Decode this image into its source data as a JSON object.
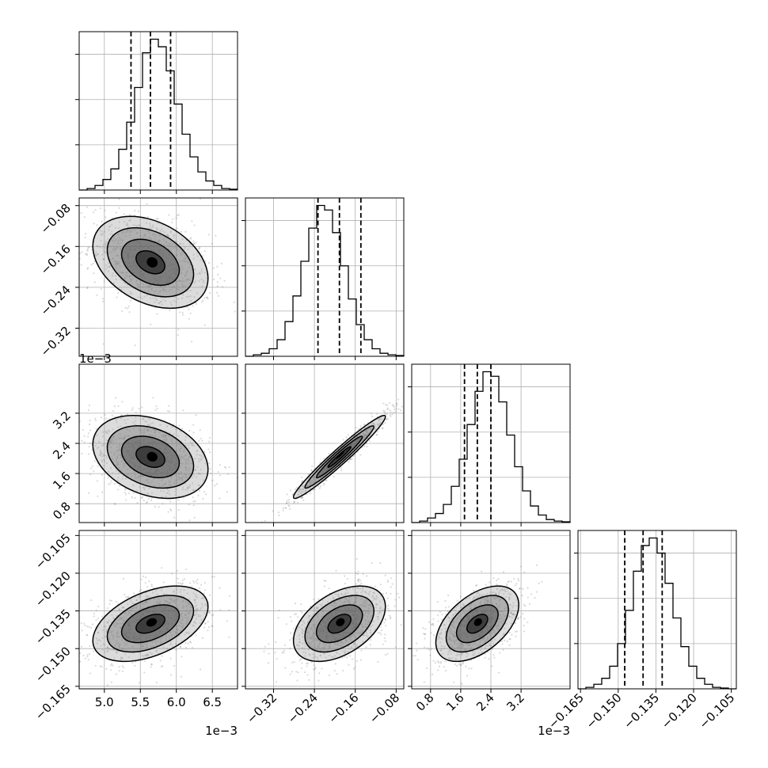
{
  "chart_data": {
    "type": "corner",
    "grid": true,
    "params": [
      {
        "range": [
          0.00465,
          0.00685
        ],
        "ticks": [
          0.005,
          0.0055,
          0.006,
          0.0065
        ],
        "tick_labels": [
          "5.0",
          "5.5",
          "6.0",
          "6.5"
        ],
        "offset_label": "1e−3",
        "quantiles": [
          0.00537,
          0.00564,
          0.00592
        ],
        "hist_ylim": [
          0,
          1.05
        ],
        "hist": [
          0.0,
          0.01,
          0.03,
          0.07,
          0.14,
          0.27,
          0.45,
          0.68,
          0.91,
          1.0,
          0.95,
          0.79,
          0.57,
          0.37,
          0.22,
          0.12,
          0.06,
          0.03,
          0.01,
          0.005
        ],
        "hist_grid": [
          0.3,
          0.6,
          0.9
        ]
      },
      {
        "range": [
          -0.375,
          -0.065
        ],
        "ticks": [
          -0.32,
          -0.24,
          -0.16,
          -0.08
        ],
        "tick_labels": [
          "−0.32",
          "−0.24",
          "−0.16",
          "−0.08"
        ],
        "offset_label": "",
        "quantiles": [
          -0.233,
          -0.191,
          -0.149
        ],
        "hist_ylim": [
          0,
          1.05
        ],
        "hist": [
          0.0,
          0.01,
          0.02,
          0.05,
          0.11,
          0.23,
          0.4,
          0.63,
          0.85,
          1.0,
          0.97,
          0.82,
          0.6,
          0.38,
          0.21,
          0.11,
          0.05,
          0.02,
          0.01,
          0.005
        ],
        "hist_grid": [
          0.3,
          0.6,
          0.9
        ]
      },
      {
        "range": [
          0.0003,
          0.0045
        ],
        "ticks": [
          0.0008,
          0.0016,
          0.0024,
          0.0032
        ],
        "tick_labels": [
          "0.8",
          "1.6",
          "2.4",
          "3.2"
        ],
        "offset_label": "1e−3",
        "quantiles": [
          0.0017,
          0.00204,
          0.0024
        ],
        "hist_ylim": [
          0,
          1.05
        ],
        "hist": [
          0.0,
          0.01,
          0.03,
          0.06,
          0.12,
          0.24,
          0.42,
          0.65,
          0.87,
          1.0,
          0.97,
          0.8,
          0.58,
          0.37,
          0.21,
          0.11,
          0.05,
          0.02,
          0.01,
          0.005
        ],
        "hist_grid": [
          0.3,
          0.6,
          0.9
        ]
      },
      {
        "range": [
          -0.166,
          -0.103
        ],
        "ticks": [
          -0.165,
          -0.15,
          -0.135,
          -0.12,
          -0.105
        ],
        "tick_labels": [
          "−0.165",
          "−0.150",
          "−0.135",
          "−0.120",
          "−0.105"
        ],
        "offset_label": "",
        "quantiles": [
          -0.1474,
          -0.1401,
          -0.1325
        ],
        "hist_ylim": [
          0,
          1.05
        ],
        "hist": [
          0.0,
          0.01,
          0.03,
          0.07,
          0.15,
          0.3,
          0.52,
          0.78,
          0.95,
          1.0,
          0.9,
          0.7,
          0.47,
          0.28,
          0.15,
          0.07,
          0.03,
          0.01,
          0.005,
          0.0
        ],
        "hist_grid": [
          0.3,
          0.6,
          0.9
        ]
      }
    ],
    "pairs": [
      {
        "row": 1,
        "col": 0,
        "mean": [
          0.00564,
          -0.191
        ],
        "sd": [
          0.0004,
          0.045
        ],
        "rho": -0.35,
        "n": 320
      },
      {
        "row": 2,
        "col": 0,
        "mean": [
          0.00564,
          0.00204
        ],
        "sd": [
          0.0004,
          0.00055
        ],
        "rho": -0.3,
        "n": 320
      },
      {
        "row": 2,
        "col": 1,
        "mean": [
          -0.191,
          0.00204
        ],
        "sd": [
          0.045,
          0.00055
        ],
        "rho": 0.97,
        "n": 320
      },
      {
        "row": 3,
        "col": 0,
        "mean": [
          0.00564,
          -0.1401
        ],
        "sd": [
          0.0004,
          0.0075
        ],
        "rho": 0.45,
        "n": 320
      },
      {
        "row": 3,
        "col": 1,
        "mean": [
          -0.191,
          -0.1401
        ],
        "sd": [
          0.045,
          0.0075
        ],
        "rho": 0.45,
        "n": 320
      },
      {
        "row": 3,
        "col": 2,
        "mean": [
          0.00204,
          -0.1401
        ],
        "sd": [
          0.00055,
          0.0075
        ],
        "rho": 0.5,
        "n": 320
      }
    ],
    "contour_levels_sigma": [
      0.5,
      1.0,
      1.5,
      2.0
    ],
    "colors": {
      "line": "#000000",
      "grid": "#b0b0b0",
      "scatter": "#7a7a7a"
    }
  }
}
